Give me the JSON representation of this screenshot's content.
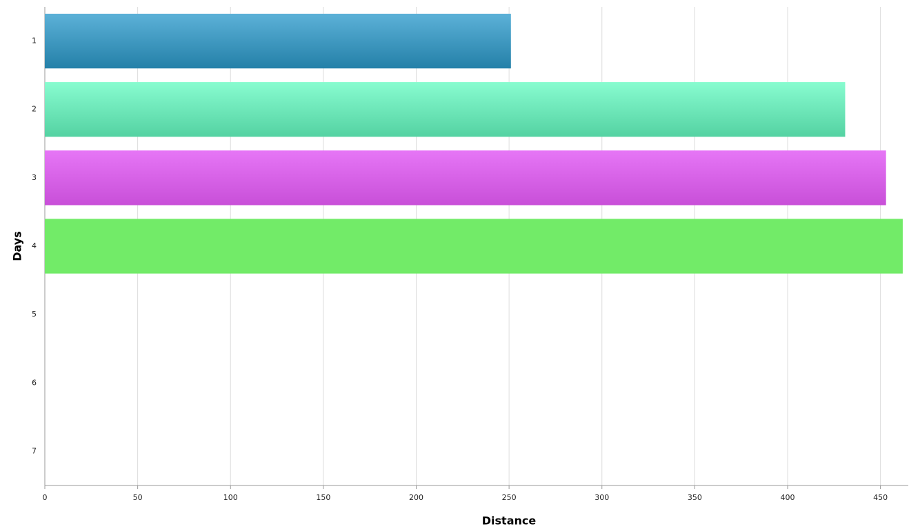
{
  "chart_data": {
    "type": "bar",
    "orientation": "horizontal",
    "x_label": "Distance",
    "y_label": "Days",
    "categories": [
      "1",
      "2",
      "3",
      "4",
      "5",
      "6",
      "7"
    ],
    "values": [
      251,
      431,
      453,
      462,
      null,
      null,
      null
    ],
    "colors": [
      [
        "#5cb1d8",
        "#2480a8"
      ],
      [
        "#88fcd0",
        "#54d2a2"
      ],
      [
        "#e676f6",
        "#c84fd8"
      ],
      [
        "#72eb68",
        "#72eb68"
      ],
      null,
      null,
      null
    ],
    "xlim": [
      0,
      465
    ],
    "xticks": [
      0,
      50,
      100,
      150,
      200,
      250,
      300,
      350,
      400,
      450
    ],
    "grid": true
  }
}
